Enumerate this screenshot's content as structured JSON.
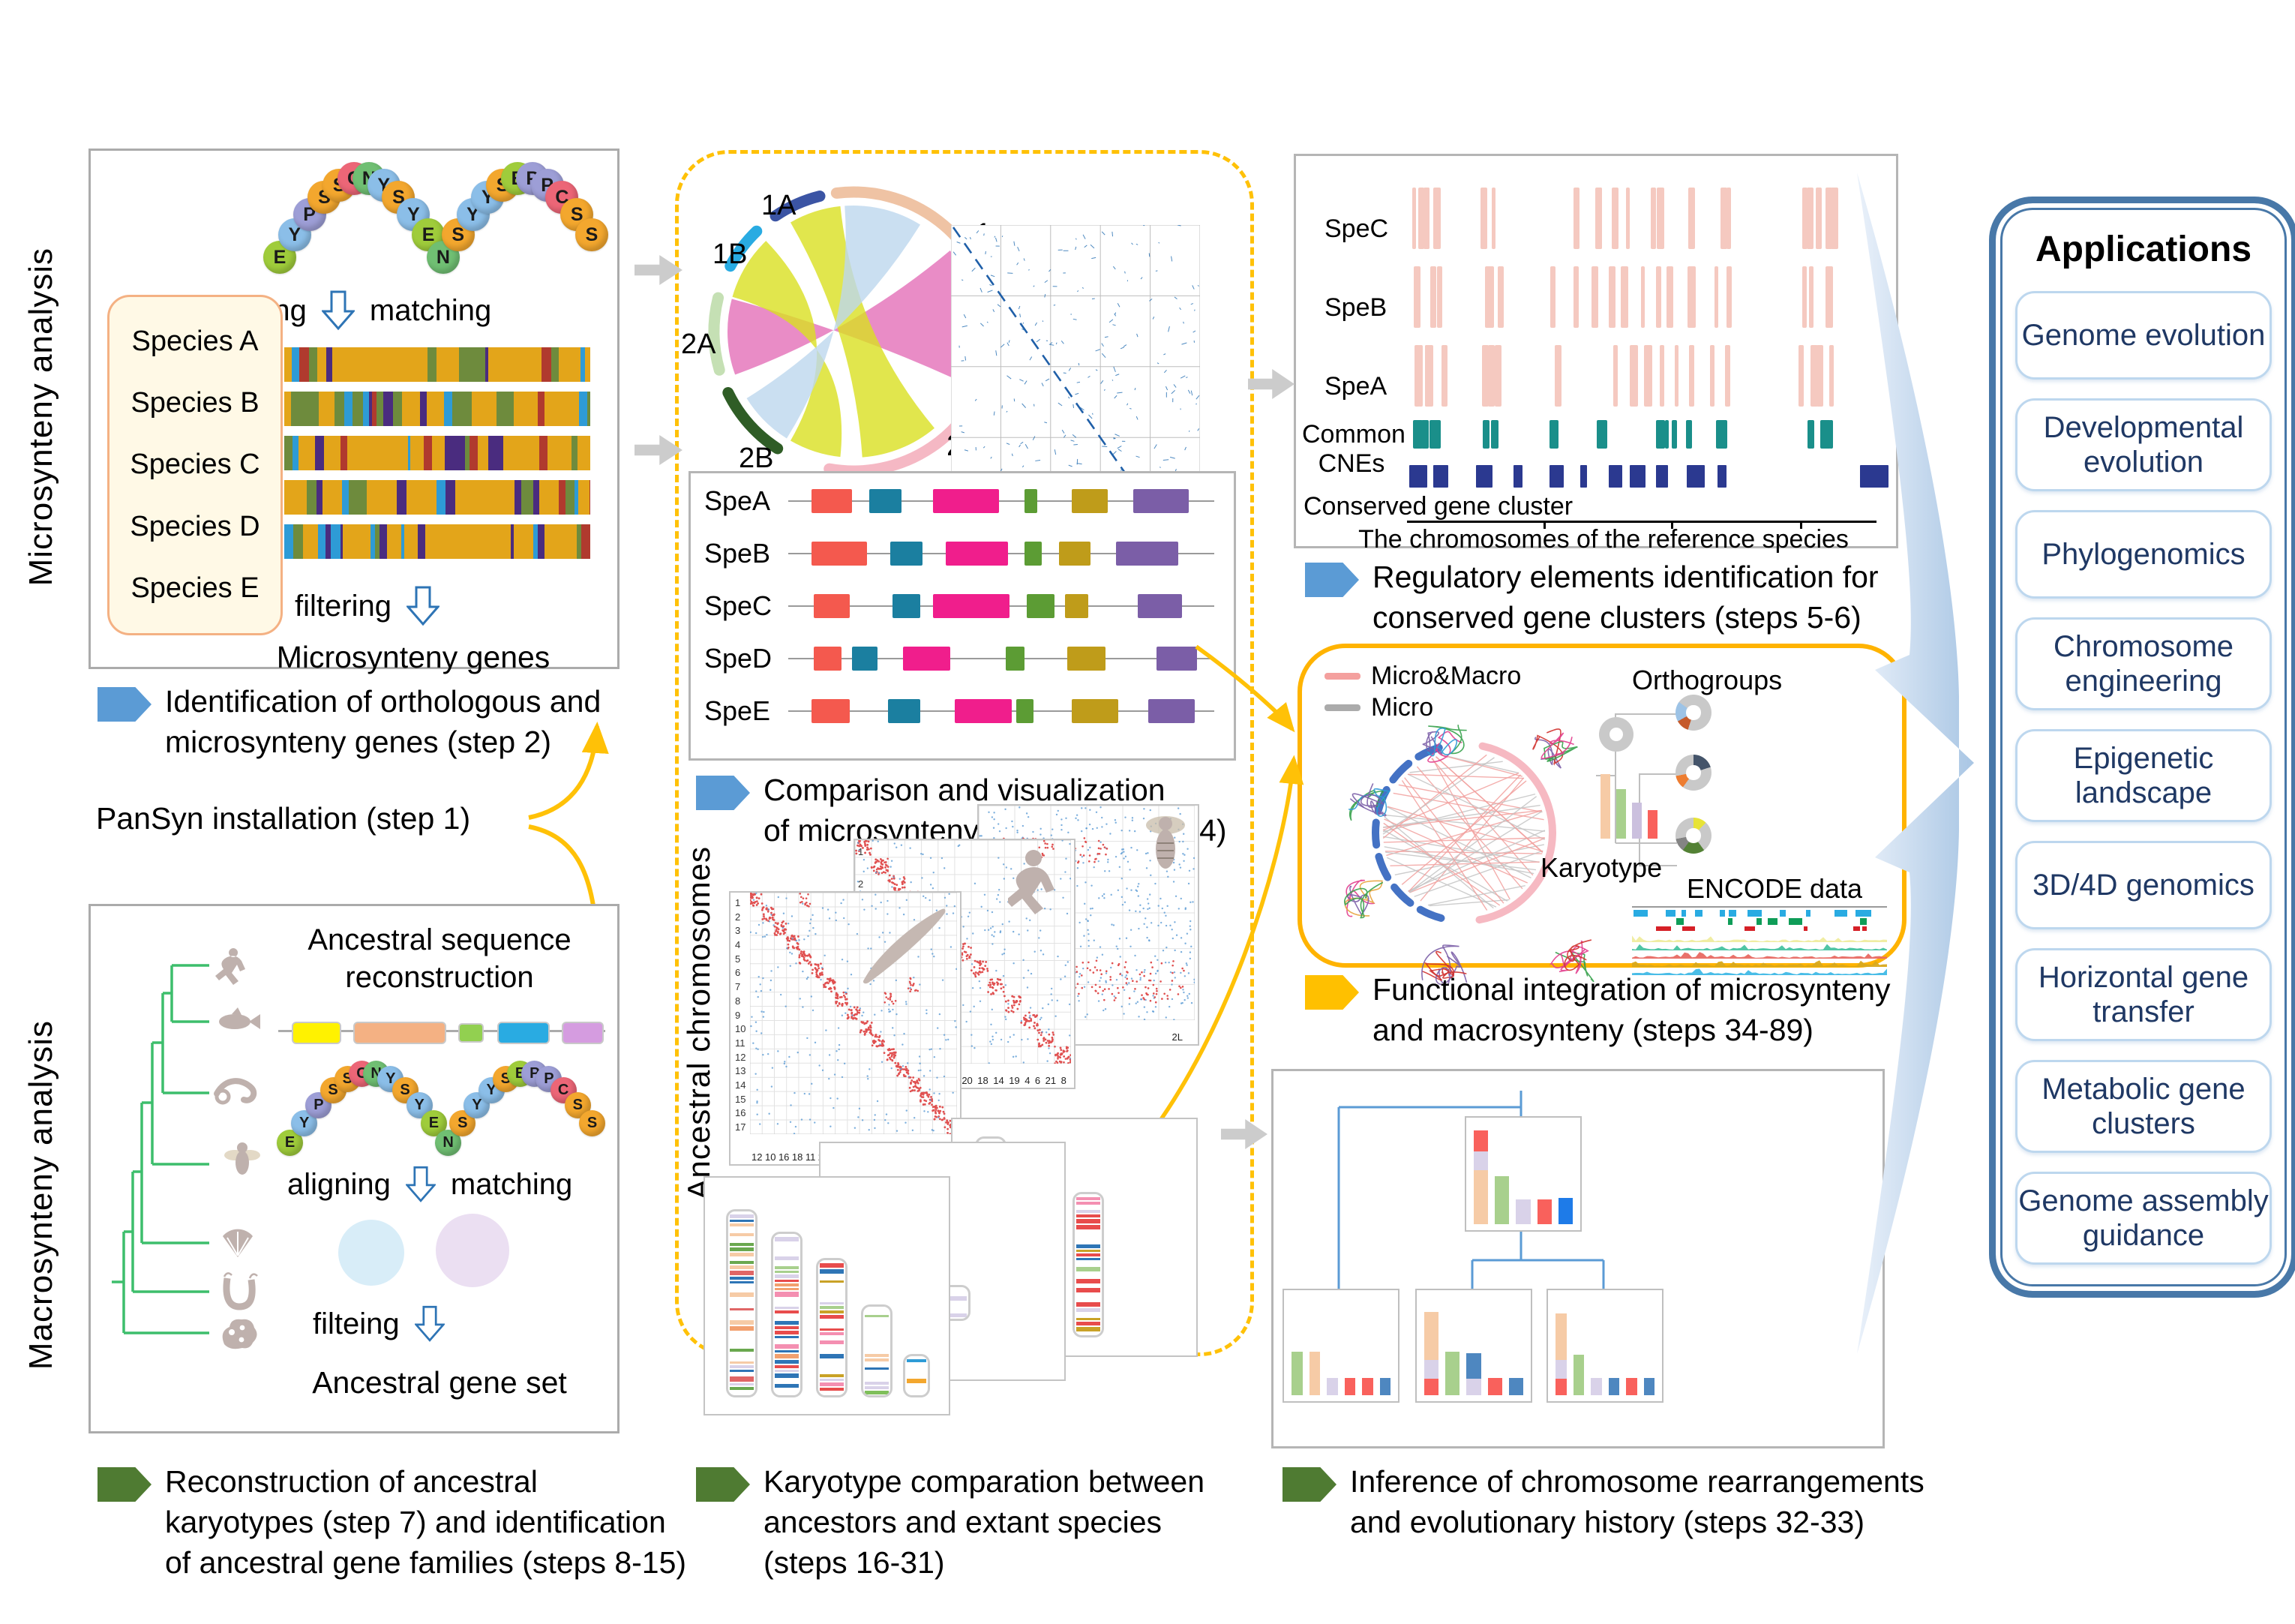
{
  "figure": {
    "micro_section_label": "Microsynteny analysis",
    "macro_section_label": "Macrosynteny analysis"
  },
  "beads": [
    [
      "E",
      "#9FCC3B"
    ],
    [
      "Y",
      "#8BBEE8"
    ],
    [
      "P",
      "#9D9ED6"
    ],
    [
      "S",
      "#F3A72E"
    ],
    [
      "S",
      "#F3A72E"
    ],
    [
      "C",
      "#EC6677"
    ],
    [
      "N",
      "#70BF73"
    ],
    [
      "Y",
      "#8BBEE8"
    ],
    [
      "S",
      "#F3A72E"
    ],
    [
      "Y",
      "#8BBEE8"
    ],
    [
      "E",
      "#9FCC3B"
    ],
    [
      "N",
      "#70BF73"
    ],
    [
      "S",
      "#F3A72E"
    ],
    [
      "Y",
      "#8BBEE8"
    ],
    [
      "Y",
      "#8BBEE8"
    ],
    [
      "S",
      "#F3A72E"
    ],
    [
      "E",
      "#9FCC3B"
    ],
    [
      "P",
      "#9D9ED6"
    ],
    [
      "P",
      "#9D9ED6"
    ],
    [
      "C",
      "#EC6677"
    ],
    [
      "S",
      "#F3A72E"
    ],
    [
      "S",
      "#F3A72E"
    ]
  ],
  "micro_panel": {
    "species": [
      "Species A",
      "Species B",
      "Species C",
      "Species D",
      "Species E"
    ],
    "aligning": "aligning",
    "matching": "matching",
    "filtering": "filtering",
    "result": "Microsynteny genes"
  },
  "macro_panel": {
    "title": "Ancestral sequence reconstruction",
    "aligning": "aligning",
    "matching": "matching",
    "filtering": "filteing",
    "result": "Ancestral gene set"
  },
  "captions": {
    "pansyn": "PanSyn installation (step 1)",
    "identification": [
      "Identification of orthologous and",
      "microsynteny genes (step 2)"
    ],
    "reconstruction": [
      "Reconstruction of ancestral",
      "karyotypes (step 7) and identification",
      "of ancestral gene families (steps 8-15)"
    ],
    "comparison": [
      "Comparison and visualization",
      "of microsynteny genes (steps 3-4)"
    ],
    "karyotype": [
      "Karyotype comparation between",
      "ancestors and extant species",
      "(steps 16-31)"
    ],
    "regulatory": [
      "Regulatory elements identification for",
      "conserved gene clusters (steps 5-6)"
    ],
    "integration": [
      "Functional integration of microsynteny",
      "and macrosynteny (steps 34-89)"
    ],
    "inference": [
      "Inference of chromosome rearrangements",
      "and evolutionary history (steps 32-33)"
    ]
  },
  "circos": {
    "labels": [
      "1A",
      "1B",
      "2A",
      "2B",
      "1",
      "2"
    ]
  },
  "gene_tracks": {
    "rows": [
      "SpeA",
      "SpeB",
      "SpeC",
      "SpeD",
      "SpeE"
    ]
  },
  "regulatory_panel": {
    "tracks": [
      "SpeC",
      "SpeB",
      "SpeA"
    ],
    "cne_label": "Common CNEs",
    "cluster_label": "Conserved gene cluster",
    "axis_label": "The chromosomes of the reference species"
  },
  "integration_box": {
    "legend": [
      {
        "label": "Micro&Macro",
        "color": "#F4A09E"
      },
      {
        "label": "Micro",
        "color": "#ABABAB"
      }
    ],
    "orthogroups_label": "Orthogroups",
    "karyotype_label": "Karyotype",
    "encode_label": "ENCODE data"
  },
  "ancestral_plots": {
    "side_label": "Ancestral chromosomes",
    "amphioxus_y": "1 2 3 4 5 6 7 8 9 10 11 12 13 14 15 16 17",
    "amphioxus_x": "12 10 16 18 11 2 13 5 19 14 15 8 4 6 1 7 9 3 17",
    "human_y": "1 2 3 4",
    "human_x": "3 X 11 1 3 10 16 20 18 14 19 4 6 21 8",
    "fly_x": "X 2L"
  },
  "inference_tree": {
    "palette": {
      "peach": "#F6CBA6",
      "lav": "#D9D2E9",
      "red": "#F9615C",
      "green": "#A8D08D",
      "blue": "#1E7BE8",
      "steel": "#4E87C0"
    },
    "boxes": [
      {
        "bars": [
          [
            [
              "peach",
              0.56
            ],
            [
              "lav",
              0.2
            ],
            [
              "red",
              0.22
            ]
          ],
          [
            [
              "green",
              0.5
            ]
          ],
          [
            [
              "lav",
              0.26
            ]
          ],
          [
            [
              "red",
              0.26
            ]
          ],
          [
            [
              "blue",
              0.27
            ]
          ]
        ]
      },
      {
        "bars": [
          [
            [
              "green",
              0.45
            ]
          ],
          [
            [
              "peach",
              0.45
            ]
          ],
          [
            [
              "lav",
              0.18
            ]
          ],
          [
            [
              "red",
              0.18
            ]
          ],
          [
            [
              "red",
              0.18
            ]
          ],
          [
            [
              "steel",
              0.18
            ]
          ]
        ]
      },
      {
        "bars": [
          [
            [
              "red",
              0.17
            ],
            [
              "lav",
              0.2
            ],
            [
              "peach",
              0.5
            ]
          ],
          [
            [
              "green",
              0.45
            ]
          ],
          [
            [
              "lav",
              0.17
            ],
            [
              "steel",
              0.27
            ]
          ],
          [
            [
              "red",
              0.18
            ]
          ],
          [
            [
              "steel",
              0.18
            ]
          ]
        ]
      },
      {
        "bars": [
          [
            [
              "red",
              0.17
            ],
            [
              "lav",
              0.2
            ],
            [
              "peach",
              0.48
            ]
          ],
          [
            [
              "green",
              0.42
            ]
          ],
          [
            [
              "lav",
              0.18
            ]
          ],
          [
            [
              "steel",
              0.18
            ]
          ],
          [
            [
              "red",
              0.18
            ]
          ],
          [
            [
              "steel",
              0.18
            ]
          ]
        ]
      }
    ]
  },
  "applications": {
    "title": "Applications",
    "items": [
      "Genome evolution",
      "Developmental evolution",
      "Phylogenomics",
      "Chromosome engineering",
      "Epigenetic landscape",
      "3D/4D genomics",
      "Horizontal gene transfer",
      "Metabolic gene clusters",
      "Genome assembly guidance"
    ]
  }
}
